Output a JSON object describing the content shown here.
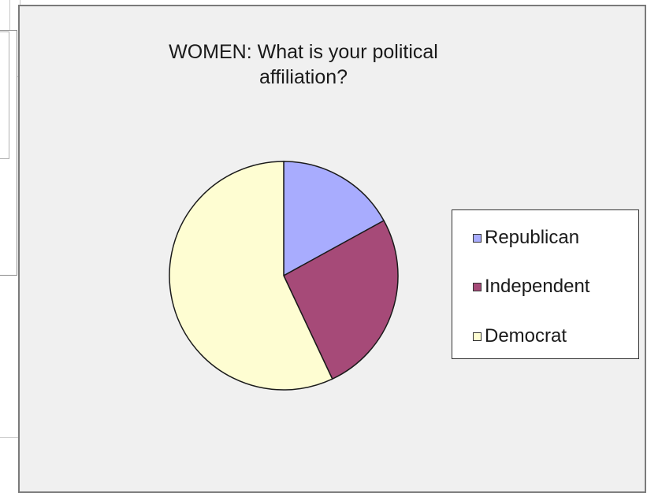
{
  "chart_data": {
    "type": "pie",
    "title": "WOMEN: What is your political affiliation?",
    "categories": [
      "Republican",
      "Independent",
      "Democrat"
    ],
    "values": [
      17,
      26,
      57
    ],
    "colors": [
      "#a8acfe",
      "#a64a78",
      "#fefdd2"
    ],
    "legend_position": "right"
  }
}
